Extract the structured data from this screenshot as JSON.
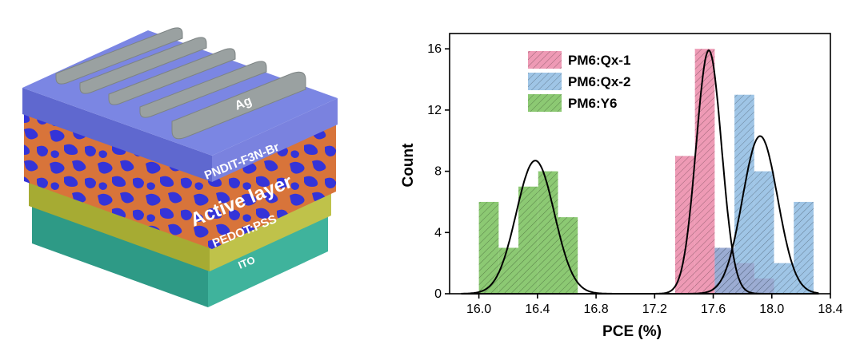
{
  "device": {
    "layers": {
      "ag": "Ag",
      "etl": "PNDIT-F3N-Br",
      "active": "Active layer",
      "htl": "PEDOT:PSS",
      "ito": "ITO"
    },
    "colors": {
      "top": "#7b86e3",
      "active_blue": "#3434d8",
      "active_orange": "#d8743a",
      "htl": "#a6ab33",
      "ito": "#3aa894",
      "electrode": "#9aa1a1"
    }
  },
  "chart_data": {
    "type": "histogram",
    "xlabel": "PCE (%)",
    "ylabel": "Count",
    "xlim": [
      15.8,
      18.4
    ],
    "ylim": [
      0,
      17
    ],
    "xticks": [
      16.0,
      16.4,
      16.8,
      17.2,
      17.6,
      18.0,
      18.4
    ],
    "xtick_labels": [
      "16.0",
      "16.4",
      "16.8",
      "17.2",
      "17.6",
      "18.0",
      "18.4"
    ],
    "yticks": [
      0,
      4,
      8,
      12,
      16
    ],
    "ytick_labels": [
      "0",
      "4",
      "8",
      "12",
      "16"
    ],
    "legend_position": "top-left",
    "bin_width": 0.135,
    "series": [
      {
        "name": "PM6:Qx-1",
        "color": "#e8789c",
        "bin_starts": [
          17.34,
          17.475,
          17.61,
          17.745,
          17.88
        ],
        "counts": [
          9,
          16,
          3,
          2,
          1
        ],
        "fit": {
          "mean": 17.57,
          "sigma": 0.087,
          "peak": 15.9
        }
      },
      {
        "name": "PM6:Qx-2",
        "color": "#7fb2dd",
        "bin_starts": [
          17.61,
          17.745,
          17.88,
          18.015,
          18.15
        ],
        "counts": [
          3,
          13,
          8,
          2,
          6
        ],
        "fit": {
          "mean": 17.92,
          "sigma": 0.12,
          "peak": 10.3
        }
      },
      {
        "name": "PM6:Y6",
        "color": "#66b744",
        "bin_starts": [
          16.0,
          16.135,
          16.27,
          16.405,
          16.54
        ],
        "counts": [
          6,
          3,
          7,
          8,
          5
        ],
        "fit": {
          "mean": 16.385,
          "sigma": 0.13,
          "peak": 8.7
        }
      }
    ]
  }
}
